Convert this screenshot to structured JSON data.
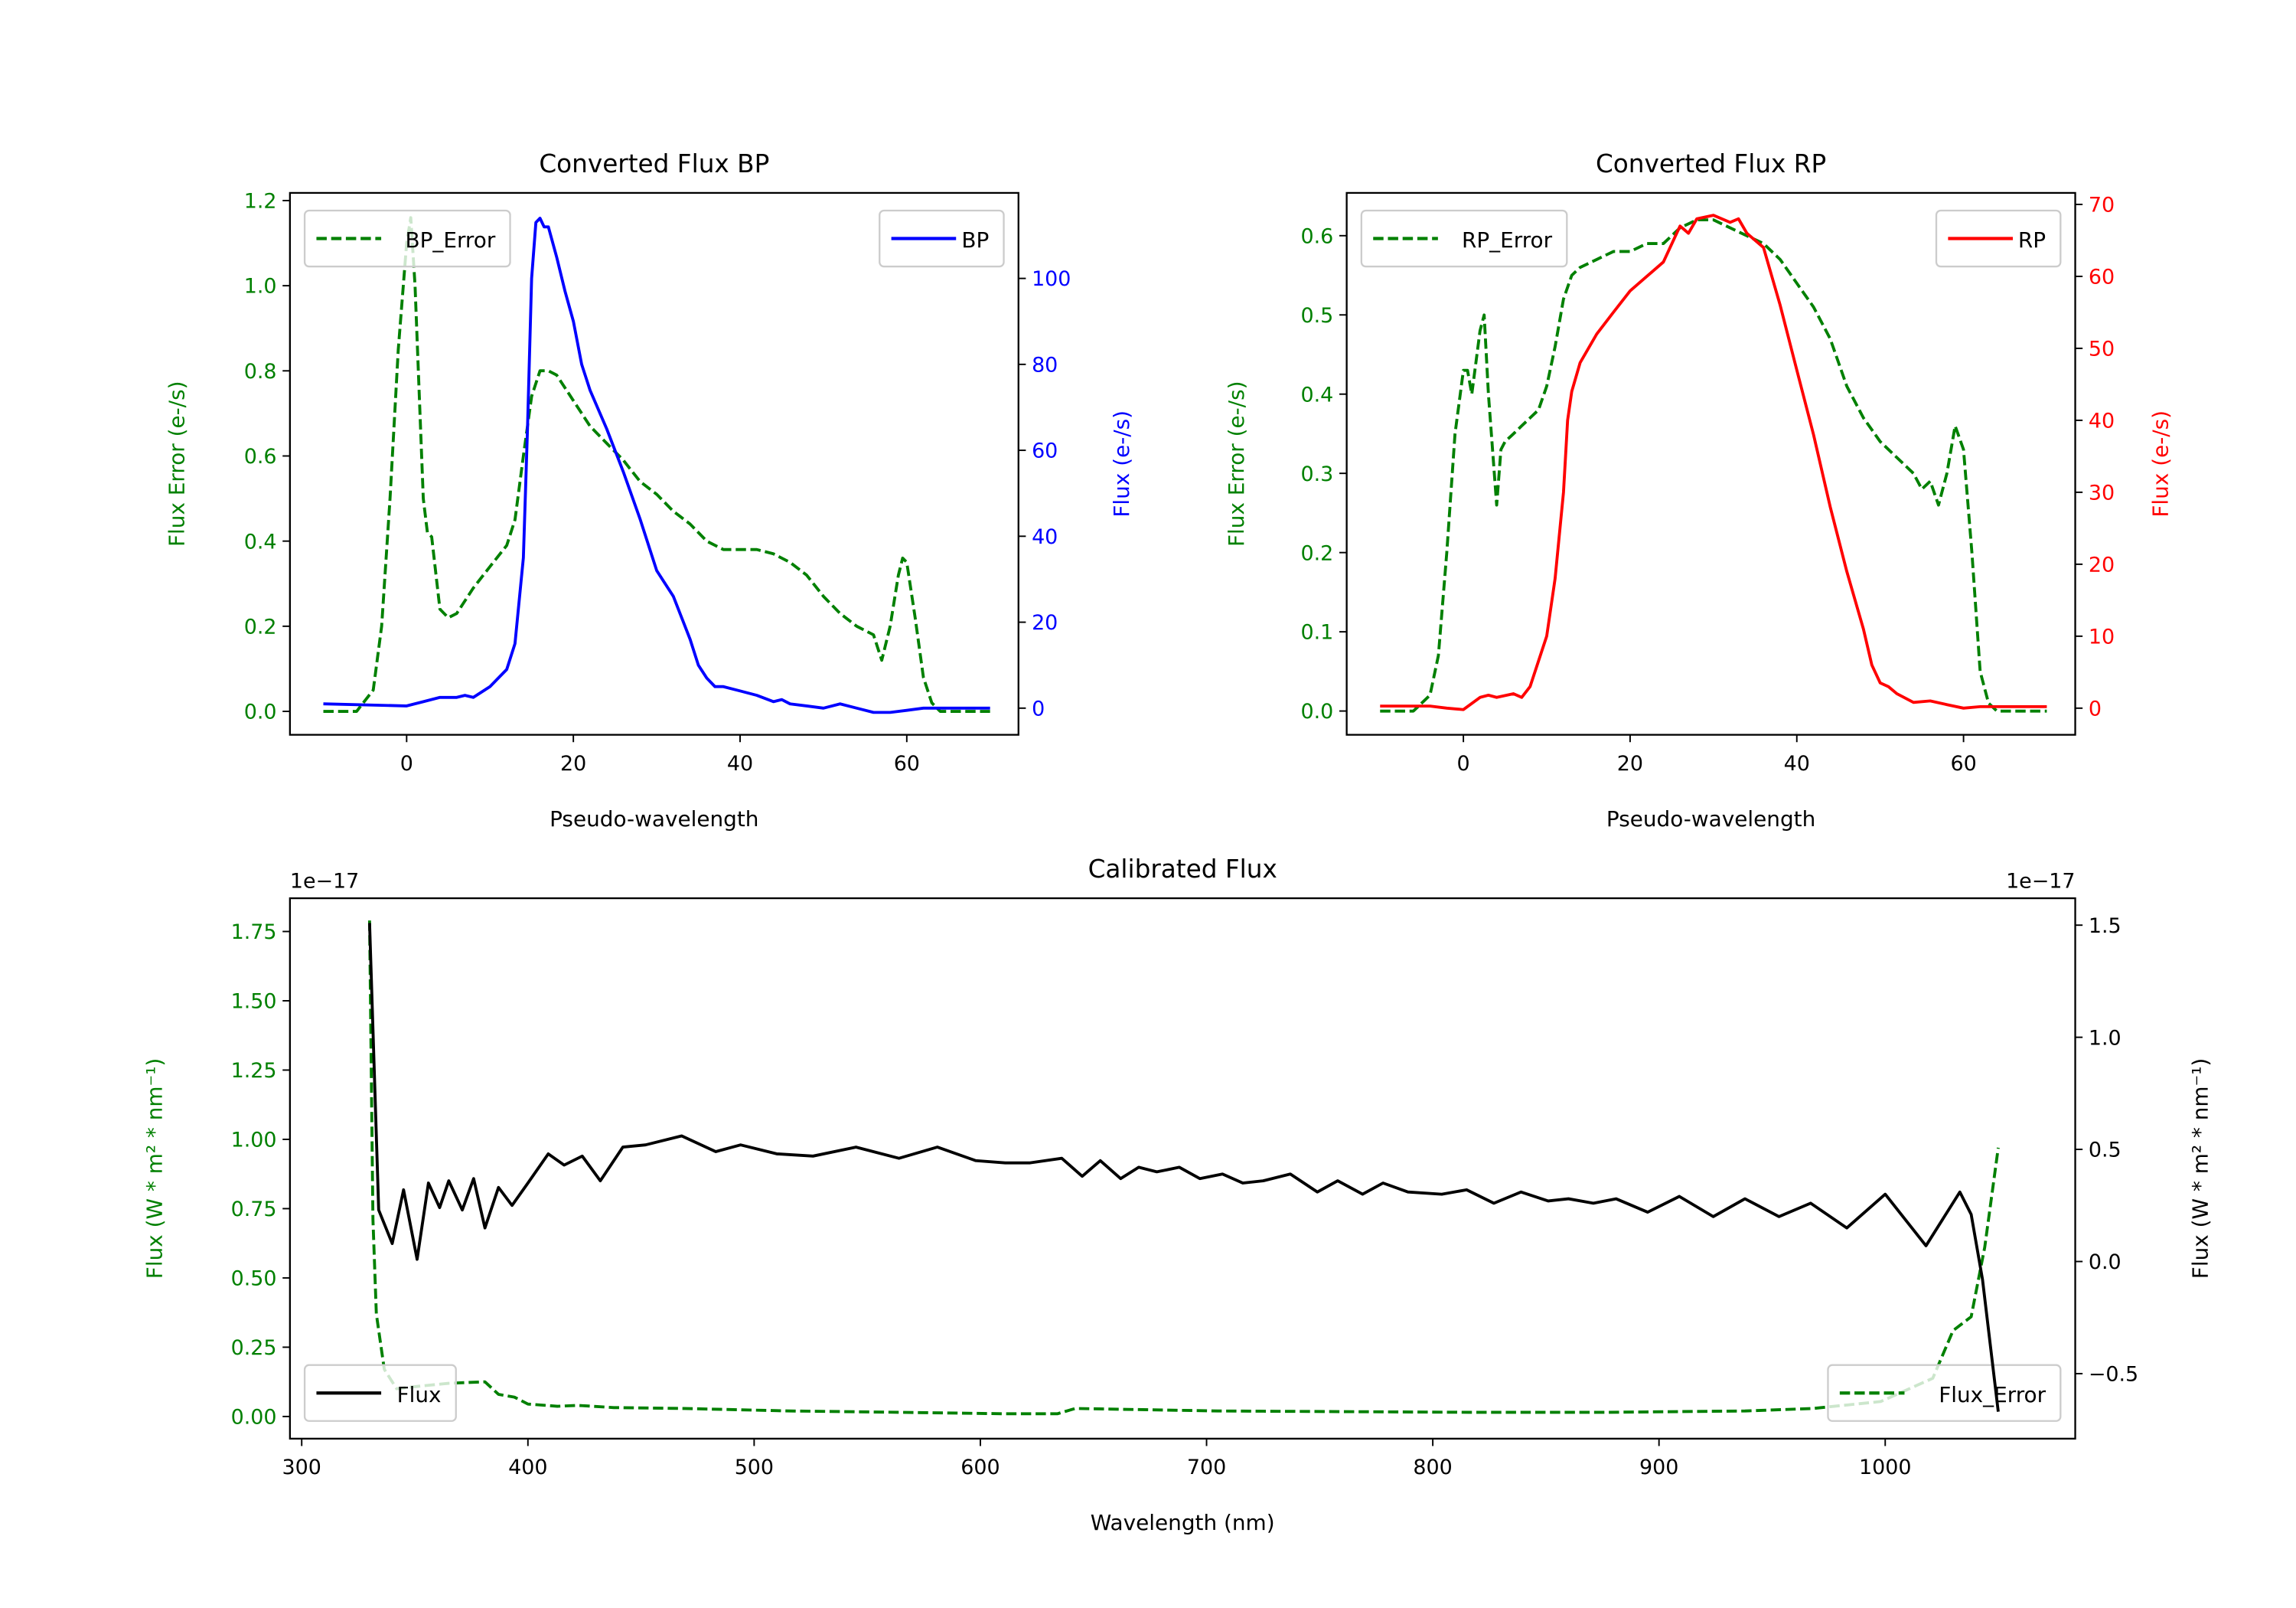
{
  "colors": {
    "error": "#008000",
    "bp": "#0000ff",
    "rp": "#ff0000",
    "flux": "#000000"
  },
  "chart_data": [
    {
      "id": "bp",
      "type": "line",
      "title": "Converted Flux BP",
      "xlabel": "Pseudo-wavelength",
      "ylabel_left": "Flux Error (e-/s)",
      "ylabel_right": "Flux (e-/s)",
      "ylabel_left_color": "#008000",
      "ylabel_right_color": "#0000ff",
      "xlim": [
        -14,
        73.4
      ],
      "ylim_left": [
        -0.055,
        1.218
      ],
      "ylim_right": [
        -6.2,
        119.9
      ],
      "xticks": [
        "0",
        "20",
        "40",
        "60"
      ],
      "yticks_left": [
        "0.0",
        "0.2",
        "0.4",
        "0.6",
        "0.8",
        "1.0",
        "1.2"
      ],
      "yticks_right": [
        "0",
        "20",
        "40",
        "60",
        "80",
        "100"
      ],
      "grid": false,
      "series": [
        {
          "name": "BP_Error",
          "axis": "left",
          "color": "#008000",
          "style": "dashed",
          "legend": "upper left",
          "x": [
            -10,
            -6,
            -4,
            -3,
            -2,
            -1,
            0,
            0.5,
            1,
            2,
            2.5,
            3,
            4,
            5,
            6,
            8,
            10,
            12,
            13,
            14,
            15,
            16,
            17,
            18,
            20,
            22,
            24,
            26,
            28,
            30,
            32,
            34,
            36,
            38,
            40,
            42,
            44,
            46,
            48,
            50,
            52,
            54,
            56,
            57,
            58,
            59,
            59.5,
            60,
            61,
            62,
            63,
            64,
            70
          ],
          "y": [
            0,
            0,
            0.05,
            0.2,
            0.5,
            0.85,
            1.1,
            1.16,
            1.0,
            0.5,
            0.42,
            0.41,
            0.24,
            0.22,
            0.23,
            0.29,
            0.34,
            0.39,
            0.45,
            0.6,
            0.74,
            0.8,
            0.8,
            0.79,
            0.73,
            0.67,
            0.63,
            0.59,
            0.54,
            0.51,
            0.47,
            0.44,
            0.4,
            0.38,
            0.38,
            0.38,
            0.37,
            0.35,
            0.32,
            0.27,
            0.23,
            0.2,
            0.18,
            0.12,
            0.2,
            0.32,
            0.36,
            0.35,
            0.22,
            0.08,
            0.02,
            0,
            0
          ]
        },
        {
          "name": "BP",
          "axis": "right",
          "color": "#0000ff",
          "style": "solid",
          "legend": "upper right",
          "x": [
            -10,
            0,
            2,
            4,
            6,
            7,
            8,
            10,
            12,
            13,
            14,
            14.5,
            15,
            15.5,
            16,
            16.5,
            17,
            18,
            19,
            20,
            21,
            22,
            24,
            26,
            28,
            30,
            32,
            34,
            35,
            36,
            37,
            38,
            40,
            42,
            44,
            45,
            46,
            48,
            50,
            52,
            54,
            56,
            58,
            60,
            62,
            64,
            66,
            70
          ],
          "y": [
            1,
            0.5,
            1.5,
            2.5,
            2.5,
            3,
            2.5,
            5,
            9,
            15,
            35,
            65,
            100,
            113,
            114,
            112,
            112,
            105,
            97,
            90,
            80,
            74,
            65,
            55,
            44,
            32,
            26,
            16,
            10,
            7,
            5,
            5,
            4,
            3,
            1.5,
            2,
            1,
            0.5,
            0,
            1,
            0,
            -1,
            -1,
            -0.5,
            0,
            0,
            0,
            0
          ]
        }
      ]
    },
    {
      "id": "rp",
      "type": "line",
      "title": "Converted Flux RP",
      "xlabel": "Pseudo-wavelength",
      "ylabel_left": "Flux Error (e-/s)",
      "ylabel_right": "Flux (e-/s)",
      "ylabel_left_color": "#008000",
      "ylabel_right_color": "#ff0000",
      "xlim": [
        -14,
        73.4
      ],
      "ylim_left": [
        -0.03,
        0.654
      ],
      "ylim_right": [
        -3.7,
        71.6
      ],
      "xticks": [
        "0",
        "20",
        "40",
        "60"
      ],
      "yticks_left": [
        "0.0",
        "0.1",
        "0.2",
        "0.3",
        "0.4",
        "0.5",
        "0.6"
      ],
      "yticks_right": [
        "0",
        "10",
        "20",
        "30",
        "40",
        "50",
        "60",
        "70"
      ],
      "grid": false,
      "series": [
        {
          "name": "RP_Error",
          "axis": "left",
          "color": "#008000",
          "style": "dashed",
          "legend": "upper left",
          "x": [
            -10,
            -6,
            -4,
            -3,
            -2,
            -1,
            0,
            0.5,
            1,
            2,
            2.5,
            3,
            4,
            4.5,
            5,
            6,
            7,
            8,
            9,
            10,
            11,
            12,
            13,
            14,
            16,
            18,
            20,
            22,
            24,
            26,
            28,
            30,
            32,
            34,
            36,
            38,
            40,
            42,
            44,
            46,
            48,
            50,
            52,
            54,
            55,
            56,
            57,
            58,
            59,
            60,
            61,
            62,
            63,
            64,
            70
          ],
          "y": [
            0,
            0,
            0.02,
            0.07,
            0.2,
            0.35,
            0.43,
            0.43,
            0.4,
            0.48,
            0.5,
            0.4,
            0.26,
            0.33,
            0.34,
            0.35,
            0.36,
            0.37,
            0.38,
            0.41,
            0.46,
            0.52,
            0.55,
            0.56,
            0.57,
            0.58,
            0.58,
            0.59,
            0.59,
            0.61,
            0.62,
            0.62,
            0.61,
            0.6,
            0.59,
            0.57,
            0.54,
            0.51,
            0.47,
            0.41,
            0.37,
            0.34,
            0.32,
            0.3,
            0.28,
            0.29,
            0.26,
            0.3,
            0.36,
            0.33,
            0.2,
            0.05,
            0.01,
            0,
            0
          ]
        },
        {
          "name": "RP",
          "axis": "right",
          "color": "#ff0000",
          "style": "solid",
          "legend": "upper right",
          "x": [
            -10,
            -4,
            -2,
            0,
            2,
            3,
            4,
            6,
            7,
            8,
            10,
            11,
            12,
            12.5,
            13,
            14,
            16,
            18,
            20,
            22,
            24,
            26,
            27,
            28,
            30,
            32,
            33,
            34,
            36,
            38,
            40,
            42,
            44,
            46,
            48,
            49,
            50,
            51,
            52,
            54,
            56,
            58,
            60,
            62,
            70
          ],
          "y": [
            0.3,
            0.3,
            0,
            -0.2,
            1.5,
            1.8,
            1.5,
            2,
            1.5,
            3,
            10,
            18,
            30,
            40,
            44,
            48,
            52,
            55,
            58,
            60,
            62,
            67,
            66,
            68,
            68.5,
            67.5,
            68,
            66,
            64,
            56,
            47,
            38,
            28,
            19,
            11,
            6,
            3.5,
            3,
            2,
            0.8,
            1,
            0.5,
            0,
            0.2,
            0.2
          ]
        }
      ]
    },
    {
      "id": "cal",
      "type": "line",
      "title": "Calibrated Flux",
      "xlabel": "Wavelength (nm)",
      "ylabel_left": "Flux (W * m² * nm⁻¹)",
      "ylabel_right": "Flux (W * m² * nm⁻¹)",
      "ylabel_left_color": "#008000",
      "ylabel_right_color": "#000000",
      "offset_text_left": "1e−17",
      "offset_text_right": "1e−17",
      "xlim": [
        294.8,
        1084
      ],
      "ylim_left": [
        -0.08,
        1.87
      ],
      "ylim_right": [
        -0.79,
        1.62
      ],
      "xticks": [
        "300",
        "400",
        "500",
        "600",
        "700",
        "800",
        "900",
        "1000"
      ],
      "yticks_left": [
        "0.00",
        "0.25",
        "0.50",
        "0.75",
        "1.00",
        "1.25",
        "1.50",
        "1.75"
      ],
      "yticks_right": [
        "−0.5",
        "0.0",
        "0.5",
        "1.0",
        "1.5"
      ],
      "grid": false,
      "series": [
        {
          "name": "Flux_Error",
          "axis": "left",
          "color": "#008000",
          "style": "dashed",
          "legend": "lower right",
          "x": [
            330,
            331.5,
            333,
            336.5,
            342,
            353,
            365,
            381,
            387,
            394,
            400,
            413,
            422,
            438,
            469,
            516,
            564,
            611,
            634,
            642,
            705,
            816,
            877,
            938,
            968,
            998,
            1021,
            1030,
            1038,
            1044,
            1050
          ],
          "y": [
            1.79,
            0.71,
            0.37,
            0.17,
            0.1,
            0.11,
            0.12,
            0.125,
            0.08,
            0.07,
            0.045,
            0.037,
            0.04,
            0.032,
            0.029,
            0.02,
            0.015,
            0.01,
            0.01,
            0.029,
            0.02,
            0.015,
            0.015,
            0.02,
            0.029,
            0.054,
            0.138,
            0.31,
            0.36,
            0.61,
            0.97
          ]
        },
        {
          "name": "Flux",
          "axis": "right",
          "color": "#000000",
          "style": "solid",
          "legend": "lower left",
          "x": [
            330,
            334,
            340,
            345,
            351,
            356,
            361,
            365,
            371,
            376,
            381,
            387,
            393,
            400,
            409,
            416,
            424,
            432,
            442,
            452,
            468,
            483,
            494,
            510,
            526,
            545,
            564,
            581,
            598,
            611,
            622,
            636,
            645,
            653,
            662,
            670,
            678,
            688,
            697,
            707,
            716,
            725,
            737,
            749,
            758,
            769,
            778,
            789,
            804,
            815,
            827,
            839,
            851,
            860,
            871,
            881,
            895,
            909,
            924,
            938,
            953,
            967,
            983,
            1000,
            1018,
            1033,
            1038,
            1043,
            1050
          ],
          "y": [
            1.51,
            0.23,
            0.08,
            0.32,
            0.01,
            0.35,
            0.24,
            0.36,
            0.23,
            0.37,
            0.15,
            0.33,
            0.25,
            0.35,
            0.48,
            0.43,
            0.47,
            0.36,
            0.51,
            0.52,
            0.56,
            0.49,
            0.52,
            0.48,
            0.47,
            0.51,
            0.46,
            0.51,
            0.45,
            0.44,
            0.44,
            0.46,
            0.38,
            0.45,
            0.37,
            0.42,
            0.4,
            0.42,
            0.37,
            0.39,
            0.35,
            0.36,
            0.39,
            0.31,
            0.36,
            0.3,
            0.35,
            0.31,
            0.3,
            0.32,
            0.26,
            0.31,
            0.27,
            0.28,
            0.26,
            0.28,
            0.22,
            0.29,
            0.2,
            0.28,
            0.2,
            0.26,
            0.15,
            0.3,
            0.07,
            0.31,
            0.21,
            -0.08,
            -0.67
          ]
        }
      ]
    }
  ]
}
